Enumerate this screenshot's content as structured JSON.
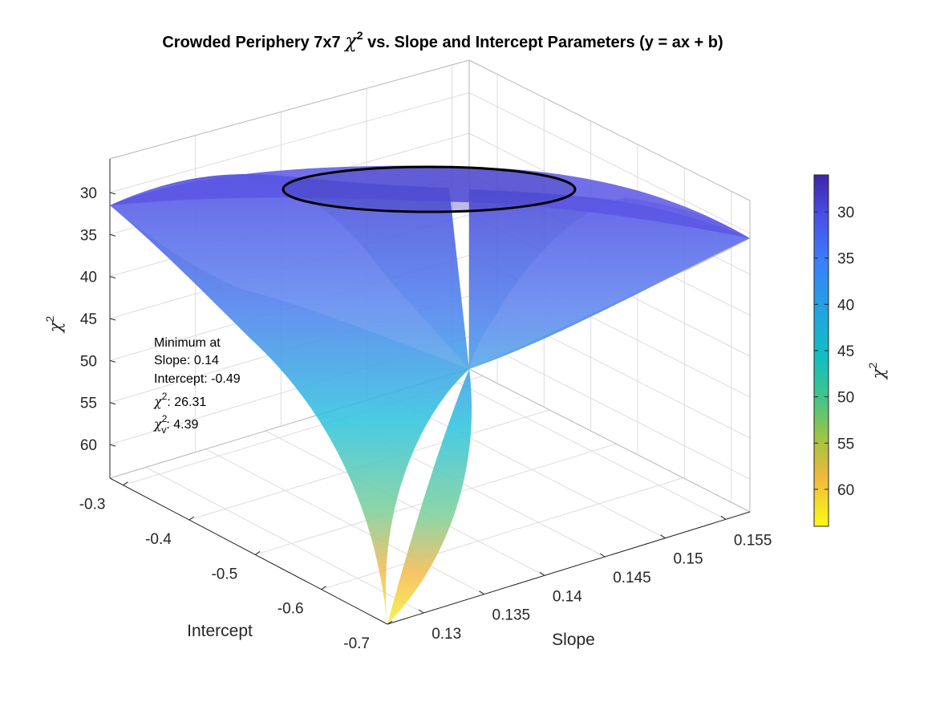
{
  "chart_data": {
    "type": "surface",
    "title": {
      "prefix": "Crowded Periphery 7x7 ",
      "symbol": "χ",
      "sup": "2",
      "suffix": " vs. Slope and Intercept Parameters (y = ax + b)"
    },
    "xlabel": "Slope",
    "ylabel": "Intercept",
    "zlabel": {
      "symbol": "χ",
      "sup": "2"
    },
    "xlim": [
      0.127,
      0.157
    ],
    "ylim": [
      -0.7,
      -0.28
    ],
    "zlim": [
      26,
      64
    ],
    "z_reversed": true,
    "x_ticks": [
      "0.13",
      "0.135",
      "0.14",
      "0.145",
      "0.15",
      "0.155"
    ],
    "y_ticks": [
      "-0.3",
      "-0.4",
      "-0.5",
      "-0.6",
      "-0.7"
    ],
    "z_ticks": [
      "30",
      "35",
      "40",
      "45",
      "50",
      "55",
      "60"
    ],
    "grid": true,
    "colormap": "parula",
    "colorbar": {
      "label": {
        "symbol": "χ",
        "sup": "2"
      },
      "ticks": [
        "30",
        "35",
        "40",
        "45",
        "50",
        "55",
        "60"
      ],
      "range": [
        26,
        64
      ],
      "reversed": true
    },
    "minimum": {
      "slope": 0.14,
      "intercept": -0.49,
      "chi2": 26.31,
      "chi2_reduced": 4.39
    },
    "contour": {
      "type": "ellipse",
      "note": "confidence contour around minimum"
    },
    "annotation": {
      "line1": "Minimum at",
      "line2": "Slope: 0.14",
      "line3": "Intercept: -0.49",
      "chi2_symbol": "χ",
      "chi2_sup": "2",
      "chi2_text": ": 26.31",
      "chiv_symbol": "χ",
      "chiv_sup": "2",
      "chiv_sub": "v",
      "chiv_text": ": 4.39"
    }
  }
}
